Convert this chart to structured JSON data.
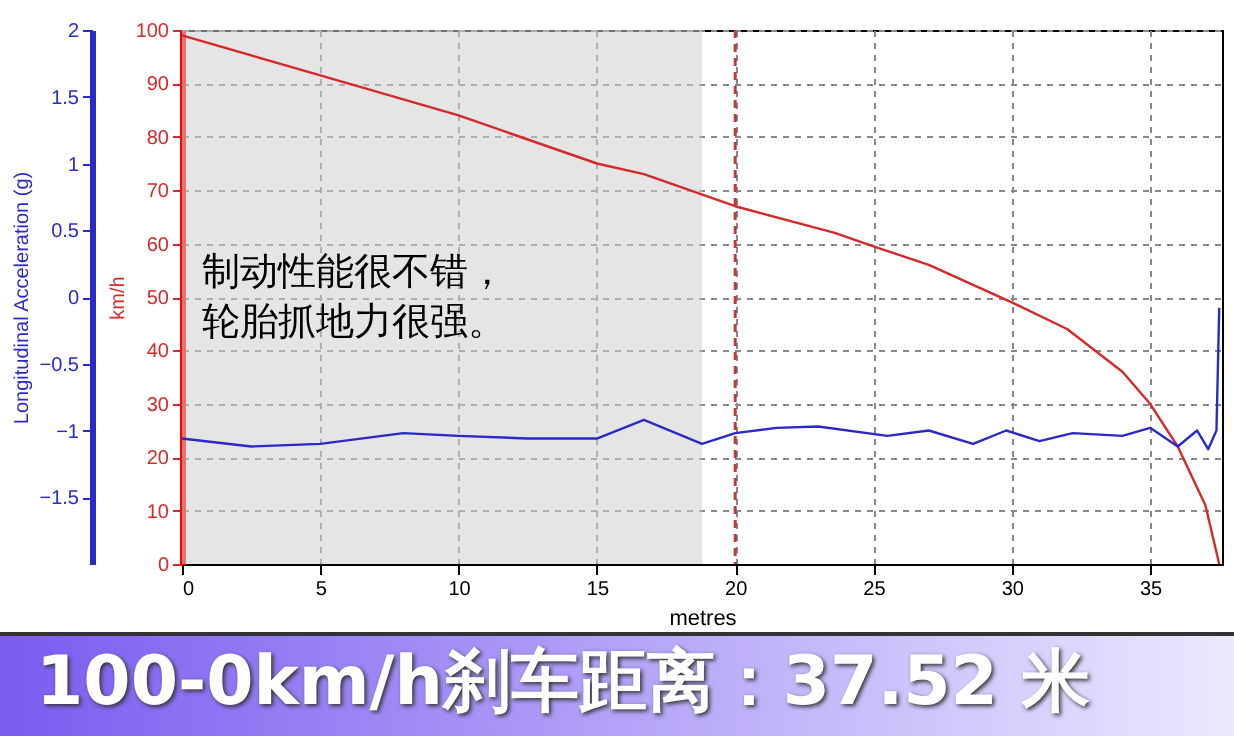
{
  "chart_data": {
    "type": "line",
    "title": "100-0km/h刹车距离：37.52 米",
    "xlabel": "metres",
    "ylabel": "km/h",
    "y2label": "Longitudinal Acceleration (g)",
    "annotations": [
      "制动性能很不错，",
      "轮胎抓地力很强。"
    ],
    "series": [
      {
        "color": "#d42a2a",
        "x": [
          0,
          5,
          10,
          15,
          16.7,
          20,
          23.6,
          25,
          27,
          30,
          32,
          34,
          35,
          36,
          37,
          37.5
        ],
        "values": [
          99,
          91.5,
          84,
          75,
          73,
          67,
          62,
          59.5,
          56,
          49,
          44,
          36,
          30,
          22,
          11,
          0
        ]
      },
      {
        "color": "#2a2ac8",
        "axis": "y2",
        "x": [
          0,
          2.5,
          5,
          8,
          10,
          12.5,
          15,
          16.7,
          18.8,
          20,
          21.5,
          23,
          25.5,
          27,
          28.6,
          29.8,
          31,
          32.2,
          34,
          35,
          36,
          36.7,
          37.1,
          37.4,
          37.5
        ],
        "values": [
          -1.06,
          -1.12,
          -1.1,
          -1.02,
          -1.04,
          -1.06,
          -1.06,
          -0.92,
          -1.1,
          -1.02,
          -0.98,
          -0.97,
          -1.04,
          -1,
          -1.1,
          -1,
          -1.08,
          -1.02,
          -1.04,
          -0.98,
          -1.12,
          -1,
          -1.14,
          -1,
          -0.08
        ]
      }
    ],
    "xlim": [
      0,
      37.6
    ],
    "xticks": [
      0,
      5,
      10,
      15,
      20,
      25,
      30,
      35
    ],
    "ylim": [
      0,
      100
    ],
    "yticks": [
      0,
      10,
      20,
      30,
      40,
      50,
      60,
      70,
      80,
      90,
      100
    ],
    "y2lim": [
      -2,
      2
    ],
    "y2ticks": [
      -1.5,
      -1,
      -0.5,
      0,
      0.5,
      1,
      1.5,
      2
    ],
    "ref_lines": [
      {
        "axis": "x",
        "value": 20,
        "color": "#c0393b",
        "line_style": "dashed"
      }
    ],
    "bands": [
      {
        "axis": "x",
        "from": 0,
        "to": 18.8,
        "color": "#cfcfcf"
      }
    ],
    "grid": true,
    "marker": "none",
    "line_style": "solid"
  }
}
